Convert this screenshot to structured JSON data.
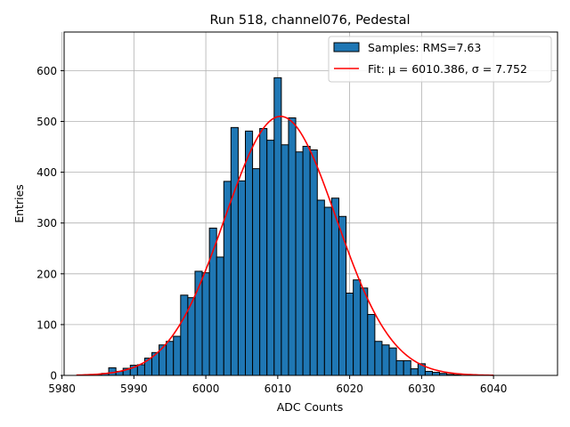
{
  "chart_data": {
    "type": "bar",
    "title": "Run 518, channel076, Pedestal",
    "xlabel": "ADC Counts",
    "ylabel": "Entries",
    "xlim": [
      5980.3,
      6048.9
    ],
    "ylim": [
      0,
      676
    ],
    "xticks": [
      5980,
      5990,
      6000,
      6010,
      6020,
      6030,
      6040
    ],
    "yticks": [
      0,
      100,
      200,
      300,
      400,
      500,
      600
    ],
    "grid": true,
    "legend_position": "top-right",
    "bin_width": 1,
    "series": [
      {
        "name": "Samples: RMS=7.63",
        "kind": "histogram",
        "color": "#1f77b4",
        "edgecolor": "#000000",
        "bins": [
          5984,
          5985,
          5986,
          5987,
          5988,
          5989,
          5990,
          5991,
          5992,
          5993,
          5994,
          5995,
          5996,
          5997,
          5998,
          5999,
          6000,
          6001,
          6002,
          6003,
          6004,
          6005,
          6006,
          6007,
          6008,
          6009,
          6010,
          6011,
          6012,
          6013,
          6014,
          6015,
          6016,
          6017,
          6018,
          6019,
          6020,
          6021,
          6022,
          6023,
          6024,
          6025,
          6026,
          6027,
          6028,
          6029,
          6030,
          6031,
          6032,
          6033,
          6034,
          6035
        ],
        "values": [
          1,
          2,
          4,
          15,
          8,
          14,
          20,
          21,
          34,
          45,
          60,
          67,
          77,
          158,
          153,
          205,
          202,
          290,
          233,
          382,
          488,
          383,
          481,
          407,
          486,
          463,
          586,
          454,
          507,
          440,
          451,
          444,
          345,
          331,
          349,
          313,
          162,
          188,
          172,
          120,
          67,
          60,
          54,
          29,
          29,
          13,
          23,
          8,
          6,
          4,
          2,
          1
        ]
      },
      {
        "name": "Fit: μ = 6010.386, σ = 7.752",
        "kind": "gaussian_fit",
        "color": "#ff0000",
        "mu": 6010.386,
        "sigma": 7.752,
        "amplitude": 510,
        "x_range": [
          5982,
          6040
        ]
      }
    ]
  }
}
